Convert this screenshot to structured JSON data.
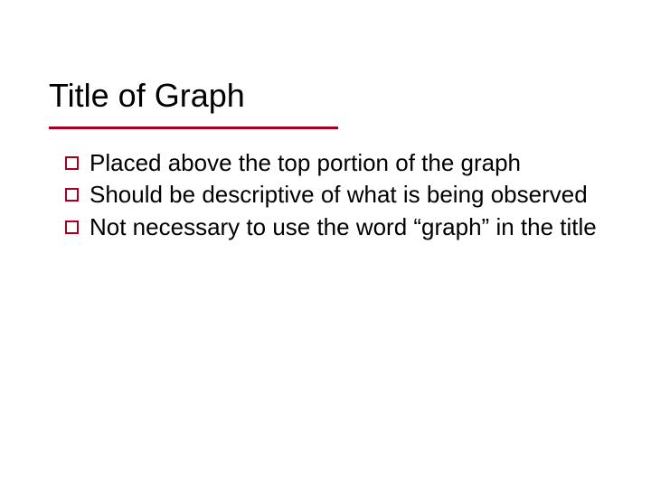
{
  "slide": {
    "title": "Title of Graph",
    "title_fontsize": 36,
    "title_color": "#000000",
    "underline_color": "#a50021",
    "underline_width": 320,
    "underline_height": 3,
    "background_color": "#ffffff",
    "bullets": [
      {
        "text": "Placed above the top portion of the graph"
      },
      {
        "text": "Should be descriptive of what is being observed"
      },
      {
        "text": "Not necessary to use the word “graph” in the title"
      }
    ],
    "bullet_fontsize": 26,
    "bullet_color": "#000000",
    "bullet_marker_border_color": "#a50021",
    "bullet_marker_size": 15,
    "font_family": "Verdana"
  }
}
